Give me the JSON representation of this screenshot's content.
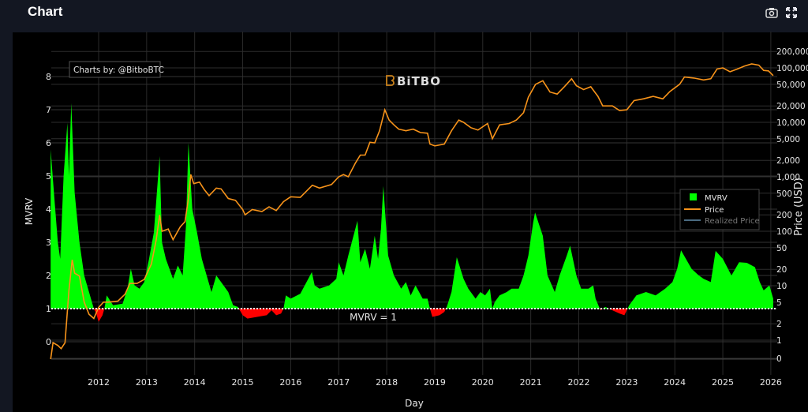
{
  "header": {
    "title": "Chart",
    "icons": [
      "camera-icon",
      "expand-icon"
    ]
  },
  "credit": "Charts by: @BitboBTC",
  "watermark": "BiTBO",
  "annotation": "MVRV = 1",
  "legend": {
    "items": [
      {
        "label": "MVRV",
        "color": "#00ff00",
        "visible": true
      },
      {
        "label": "Price",
        "color": "#f7931a",
        "visible": true
      },
      {
        "label": "Realized Price",
        "color": "#4a6a80",
        "visible": false
      }
    ]
  },
  "chart_data": {
    "type": "area",
    "xlabel": "Day",
    "ylabel": "MVRV",
    "y2label": "Price (USD)",
    "x_ticks": [
      "2012",
      "2013",
      "2014",
      "2015",
      "2016",
      "2017",
      "2018",
      "2019",
      "2020",
      "2021",
      "2022",
      "2023",
      "2024",
      "2025",
      "2026"
    ],
    "y_ticks": [
      "0",
      "1",
      "2",
      "3",
      "4",
      "5",
      "6",
      "7",
      "8"
    ],
    "y2_ticks": [
      "0",
      "1",
      "2",
      "5",
      "10",
      "20",
      "50",
      "100",
      "200",
      "500",
      "1,000",
      "2,000",
      "5,000",
      "10,000",
      "20,000",
      "50,000",
      "100,000",
      "200,000"
    ],
    "y2_scale": "log",
    "xlim": [
      2011.0,
      2026.1
    ],
    "ylim": [
      -0.52,
      9.0
    ],
    "grid": true,
    "legend_position": "right",
    "reference_line": 1,
    "colors": {
      "above": "#00ff00",
      "below": "#ff0000",
      "price": "#f7931a"
    },
    "series": [
      {
        "name": "MVRV",
        "points": [
          [
            2011.0,
            5.8
          ],
          [
            2011.08,
            4.3
          ],
          [
            2011.15,
            3.0
          ],
          [
            2011.2,
            2.5
          ],
          [
            2011.27,
            5.0
          ],
          [
            2011.35,
            6.6
          ],
          [
            2011.38,
            5.0
          ],
          [
            2011.43,
            7.2
          ],
          [
            2011.5,
            4.5
          ],
          [
            2011.6,
            3.0
          ],
          [
            2011.7,
            2.0
          ],
          [
            2011.8,
            1.5
          ],
          [
            2011.9,
            1.0
          ],
          [
            2011.95,
            0.85
          ],
          [
            2012.0,
            0.6
          ],
          [
            2012.08,
            0.8
          ],
          [
            2012.12,
            1.0
          ],
          [
            2012.17,
            1.4
          ],
          [
            2012.3,
            1.1
          ],
          [
            2012.5,
            1.15
          ],
          [
            2012.6,
            1.6
          ],
          [
            2012.67,
            2.2
          ],
          [
            2012.75,
            1.7
          ],
          [
            2012.85,
            1.6
          ],
          [
            2012.95,
            1.8
          ],
          [
            2013.05,
            2.5
          ],
          [
            2013.15,
            3.3
          ],
          [
            2013.27,
            5.6
          ],
          [
            2013.32,
            3.0
          ],
          [
            2013.4,
            2.5
          ],
          [
            2013.55,
            1.9
          ],
          [
            2013.65,
            2.3
          ],
          [
            2013.75,
            2.0
          ],
          [
            2013.82,
            3.5
          ],
          [
            2013.87,
            6.0
          ],
          [
            2013.95,
            4.0
          ],
          [
            2014.05,
            3.3
          ],
          [
            2014.15,
            2.5
          ],
          [
            2014.25,
            2.0
          ],
          [
            2014.35,
            1.5
          ],
          [
            2014.45,
            2.0
          ],
          [
            2014.55,
            1.8
          ],
          [
            2014.7,
            1.5
          ],
          [
            2014.8,
            1.1
          ],
          [
            2014.9,
            1.05
          ],
          [
            2015.0,
            0.8
          ],
          [
            2015.1,
            0.7
          ],
          [
            2015.3,
            0.75
          ],
          [
            2015.5,
            0.8
          ],
          [
            2015.6,
            0.95
          ],
          [
            2015.7,
            0.8
          ],
          [
            2015.8,
            0.85
          ],
          [
            2015.85,
            1.0
          ],
          [
            2015.9,
            1.4
          ],
          [
            2016.0,
            1.3
          ],
          [
            2016.2,
            1.45
          ],
          [
            2016.44,
            2.1
          ],
          [
            2016.5,
            1.7
          ],
          [
            2016.6,
            1.6
          ],
          [
            2016.8,
            1.7
          ],
          [
            2016.95,
            1.9
          ],
          [
            2017.0,
            2.4
          ],
          [
            2017.1,
            2.0
          ],
          [
            2017.2,
            2.6
          ],
          [
            2017.39,
            3.65
          ],
          [
            2017.45,
            2.4
          ],
          [
            2017.55,
            2.8
          ],
          [
            2017.65,
            2.2
          ],
          [
            2017.75,
            3.2
          ],
          [
            2017.82,
            2.5
          ],
          [
            2017.88,
            3.4
          ],
          [
            2017.93,
            4.7
          ],
          [
            2018.03,
            2.6
          ],
          [
            2018.15,
            2.0
          ],
          [
            2018.3,
            1.6
          ],
          [
            2018.4,
            1.8
          ],
          [
            2018.5,
            1.4
          ],
          [
            2018.6,
            1.7
          ],
          [
            2018.75,
            1.3
          ],
          [
            2018.85,
            1.3
          ],
          [
            2018.9,
            1.0
          ],
          [
            2018.95,
            0.75
          ],
          [
            2019.1,
            0.8
          ],
          [
            2019.2,
            0.9
          ],
          [
            2019.25,
            1.05
          ],
          [
            2019.35,
            1.5
          ],
          [
            2019.46,
            2.55
          ],
          [
            2019.6,
            1.9
          ],
          [
            2019.7,
            1.6
          ],
          [
            2019.85,
            1.3
          ],
          [
            2019.95,
            1.5
          ],
          [
            2020.05,
            1.4
          ],
          [
            2020.15,
            1.6
          ],
          [
            2020.2,
            1.0
          ],
          [
            2020.25,
            1.2
          ],
          [
            2020.35,
            1.4
          ],
          [
            2020.5,
            1.5
          ],
          [
            2020.6,
            1.6
          ],
          [
            2020.75,
            1.6
          ],
          [
            2020.85,
            2.0
          ],
          [
            2020.95,
            2.6
          ],
          [
            2021.05,
            3.6
          ],
          [
            2021.09,
            3.9
          ],
          [
            2021.25,
            3.2
          ],
          [
            2021.35,
            2.0
          ],
          [
            2021.5,
            1.5
          ],
          [
            2021.6,
            2.0
          ],
          [
            2021.75,
            2.6
          ],
          [
            2021.82,
            2.9
          ],
          [
            2021.95,
            2.0
          ],
          [
            2022.05,
            1.6
          ],
          [
            2022.2,
            1.6
          ],
          [
            2022.3,
            1.7
          ],
          [
            2022.35,
            1.3
          ],
          [
            2022.45,
            0.95
          ],
          [
            2022.55,
            1.05
          ],
          [
            2022.7,
            0.95
          ],
          [
            2022.85,
            0.85
          ],
          [
            2022.95,
            0.8
          ],
          [
            2023.05,
            1.1
          ],
          [
            2023.2,
            1.4
          ],
          [
            2023.4,
            1.5
          ],
          [
            2023.6,
            1.4
          ],
          [
            2023.8,
            1.6
          ],
          [
            2023.95,
            1.8
          ],
          [
            2024.05,
            2.2
          ],
          [
            2024.13,
            2.76
          ],
          [
            2024.35,
            2.2
          ],
          [
            2024.5,
            2.0
          ],
          [
            2024.6,
            1.9
          ],
          [
            2024.75,
            1.8
          ],
          [
            2024.85,
            2.74
          ],
          [
            2025.0,
            2.5
          ],
          [
            2025.18,
            2.0
          ],
          [
            2025.34,
            2.4
          ],
          [
            2025.5,
            2.38
          ],
          [
            2025.67,
            2.25
          ],
          [
            2025.77,
            1.8
          ],
          [
            2025.85,
            1.55
          ],
          [
            2025.97,
            1.7
          ],
          [
            2026.05,
            1.3
          ]
        ]
      },
      {
        "name": "Price",
        "axis": "y2",
        "points": [
          [
            2011.0,
            0.3
          ],
          [
            2011.05,
            0.9
          ],
          [
            2011.15,
            0.8
          ],
          [
            2011.22,
            0.7
          ],
          [
            2011.3,
            0.9
          ],
          [
            2011.38,
            8
          ],
          [
            2011.45,
            30
          ],
          [
            2011.5,
            17
          ],
          [
            2011.6,
            15
          ],
          [
            2011.7,
            5
          ],
          [
            2011.8,
            3
          ],
          [
            2011.9,
            2.5
          ],
          [
            2012.0,
            4
          ],
          [
            2012.1,
            5
          ],
          [
            2012.2,
            5
          ],
          [
            2012.4,
            5.2
          ],
          [
            2012.55,
            7
          ],
          [
            2012.65,
            11
          ],
          [
            2012.8,
            11
          ],
          [
            2012.95,
            13
          ],
          [
            2013.1,
            25
          ],
          [
            2013.2,
            70
          ],
          [
            2013.27,
            200
          ],
          [
            2013.32,
            100
          ],
          [
            2013.45,
            110
          ],
          [
            2013.55,
            70
          ],
          [
            2013.7,
            120
          ],
          [
            2013.8,
            150
          ],
          [
            2013.87,
            400
          ],
          [
            2013.92,
            1100
          ],
          [
            2013.98,
            750
          ],
          [
            2014.1,
            800
          ],
          [
            2014.2,
            580
          ],
          [
            2014.3,
            450
          ],
          [
            2014.45,
            620
          ],
          [
            2014.55,
            600
          ],
          [
            2014.7,
            400
          ],
          [
            2014.85,
            370
          ],
          [
            2015.0,
            250
          ],
          [
            2015.05,
            200
          ],
          [
            2015.2,
            250
          ],
          [
            2015.4,
            230
          ],
          [
            2015.55,
            280
          ],
          [
            2015.7,
            240
          ],
          [
            2015.85,
            350
          ],
          [
            2016.0,
            430
          ],
          [
            2016.2,
            420
          ],
          [
            2016.45,
            700
          ],
          [
            2016.6,
            620
          ],
          [
            2016.85,
            720
          ],
          [
            2017.0,
            1000
          ],
          [
            2017.1,
            1100
          ],
          [
            2017.2,
            1000
          ],
          [
            2017.35,
            1800
          ],
          [
            2017.45,
            2500
          ],
          [
            2017.55,
            2500
          ],
          [
            2017.65,
            4300
          ],
          [
            2017.75,
            4200
          ],
          [
            2017.85,
            7000
          ],
          [
            2017.96,
            17000
          ],
          [
            2018.05,
            11000
          ],
          [
            2018.15,
            9000
          ],
          [
            2018.25,
            7500
          ],
          [
            2018.4,
            7000
          ],
          [
            2018.55,
            7500
          ],
          [
            2018.7,
            6500
          ],
          [
            2018.85,
            6300
          ],
          [
            2018.9,
            4000
          ],
          [
            2019.0,
            3700
          ],
          [
            2019.2,
            4000
          ],
          [
            2019.35,
            7000
          ],
          [
            2019.5,
            11000
          ],
          [
            2019.6,
            10000
          ],
          [
            2019.75,
            8000
          ],
          [
            2019.9,
            7200
          ],
          [
            2020.1,
            9500
          ],
          [
            2020.2,
            5000
          ],
          [
            2020.35,
            9000
          ],
          [
            2020.55,
            9500
          ],
          [
            2020.7,
            11000
          ],
          [
            2020.85,
            15000
          ],
          [
            2020.95,
            29000
          ],
          [
            2021.1,
            50000
          ],
          [
            2021.25,
            58000
          ],
          [
            2021.4,
            36000
          ],
          [
            2021.55,
            33000
          ],
          [
            2021.7,
            45000
          ],
          [
            2021.85,
            63000
          ],
          [
            2021.95,
            47000
          ],
          [
            2022.1,
            40000
          ],
          [
            2022.25,
            45000
          ],
          [
            2022.4,
            30000
          ],
          [
            2022.5,
            20000
          ],
          [
            2022.7,
            20000
          ],
          [
            2022.85,
            16500
          ],
          [
            2023.0,
            17000
          ],
          [
            2023.15,
            25000
          ],
          [
            2023.35,
            27000
          ],
          [
            2023.55,
            30000
          ],
          [
            2023.75,
            27000
          ],
          [
            2023.9,
            37000
          ],
          [
            2024.1,
            50000
          ],
          [
            2024.2,
            68000
          ],
          [
            2024.4,
            65000
          ],
          [
            2024.6,
            60000
          ],
          [
            2024.75,
            63000
          ],
          [
            2024.88,
            95000
          ],
          [
            2025.0,
            100000
          ],
          [
            2025.15,
            85000
          ],
          [
            2025.3,
            95000
          ],
          [
            2025.45,
            108000
          ],
          [
            2025.6,
            118000
          ],
          [
            2025.75,
            112000
          ],
          [
            2025.85,
            90000
          ],
          [
            2025.95,
            88000
          ],
          [
            2026.05,
            72000
          ]
        ]
      }
    ]
  }
}
